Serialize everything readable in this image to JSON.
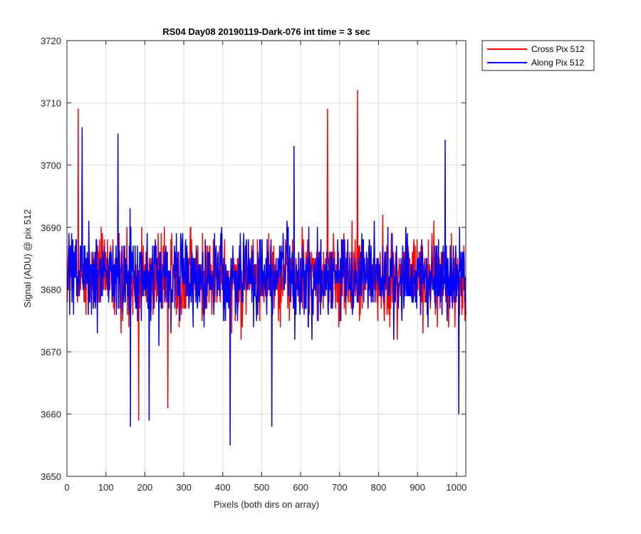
{
  "chart_data": {
    "type": "line",
    "title": "RS04 Day08 20190119-Dark-076 int time = 3 sec",
    "xlabel": "Pixels (both dirs on array)",
    "ylabel": "Signal (ADU) @ pix 512",
    "xlim": [
      0,
      1024
    ],
    "ylim": [
      3650,
      3720
    ],
    "xticks": [
      0,
      100,
      200,
      300,
      400,
      500,
      600,
      700,
      800,
      900,
      1000
    ],
    "yticks": [
      3650,
      3660,
      3670,
      3680,
      3690,
      3700,
      3710,
      3720
    ],
    "grid": true,
    "legend_position": "outside-top-right",
    "series": [
      {
        "name": "Cross Pix 512",
        "color": "#ff0000",
        "mean": 3682,
        "spread": 5.5,
        "n_points": 1024,
        "min": 3659,
        "max": 3712,
        "notable_points": [
          {
            "x": 28,
            "y": 3709
          },
          {
            "x": 183,
            "y": 3659
          },
          {
            "x": 258,
            "y": 3661
          },
          {
            "x": 668,
            "y": 3709
          },
          {
            "x": 745,
            "y": 3712
          }
        ]
      },
      {
        "name": "Along Pix 512",
        "color": "#0000ff",
        "mean": 3682,
        "spread": 5.5,
        "n_points": 1024,
        "min": 3655,
        "max": 3706,
        "notable_points": [
          {
            "x": 38,
            "y": 3706
          },
          {
            "x": 130,
            "y": 3705
          },
          {
            "x": 162,
            "y": 3658
          },
          {
            "x": 210,
            "y": 3659
          },
          {
            "x": 418,
            "y": 3655
          },
          {
            "x": 525,
            "y": 3658
          },
          {
            "x": 582,
            "y": 3703
          },
          {
            "x": 970,
            "y": 3704
          },
          {
            "x": 1005,
            "y": 3660
          }
        ]
      }
    ]
  }
}
